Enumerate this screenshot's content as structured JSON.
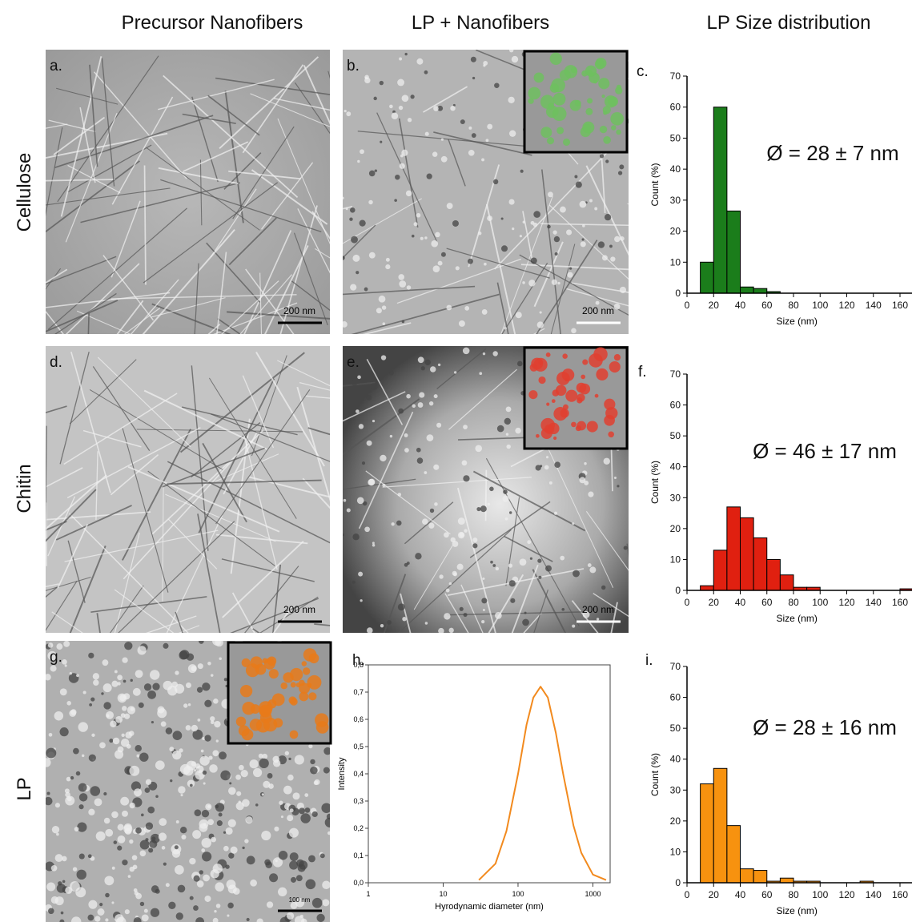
{
  "column_headers": [
    "Precursor Nanofibers",
    "LP + Nanofibers",
    "LP Size distribution"
  ],
  "row_labels": [
    "Cellulose",
    "Chitin",
    "LP"
  ],
  "micrographs": [
    {
      "label": "a.",
      "scale_bar": "200 nm"
    },
    {
      "label": "b.",
      "scale_bar": "200 nm"
    },
    {
      "label": "d.",
      "scale_bar": "200 nm"
    },
    {
      "label": "e.",
      "scale_bar": "200 nm"
    },
    {
      "label": "g.",
      "scale_bar": "100 nm"
    }
  ],
  "chart_data": [
    {
      "type": "histogram",
      "panel": "c.",
      "annotation": "Ø = 28 ± 7 nm",
      "x_label": "Size (nm)",
      "y_label": "Count (%)",
      "bins": [
        10,
        20,
        30,
        40,
        50,
        60,
        70
      ],
      "values": [
        10,
        60,
        26.5,
        2,
        1.5,
        0.5
      ],
      "color": "#1b7d1b",
      "xlim": [
        0,
        165
      ],
      "ylim": [
        0,
        70
      ],
      "xticks": [
        0,
        20,
        40,
        60,
        80,
        100,
        120,
        140,
        160
      ],
      "yticks": [
        0,
        10,
        20,
        30,
        40,
        50,
        60,
        70
      ]
    },
    {
      "type": "histogram",
      "panel": "f.",
      "annotation": "Ø = 46 ± 17 nm",
      "x_label": "Size (nm)",
      "y_label": "Count (%)",
      "bins": [
        10,
        20,
        30,
        40,
        50,
        60,
        70,
        80,
        90,
        100,
        110,
        120,
        130,
        140,
        150,
        160,
        170
      ],
      "values": [
        1.5,
        13,
        27,
        23.5,
        17,
        10,
        5,
        1,
        1,
        0,
        0,
        0,
        0,
        0,
        0,
        0.5
      ],
      "color": "#e02010",
      "xlim": [
        0,
        165
      ],
      "ylim": [
        0,
        70
      ],
      "xticks": [
        0,
        20,
        40,
        60,
        80,
        100,
        120,
        140,
        160
      ],
      "yticks": [
        0,
        10,
        20,
        30,
        40,
        50,
        60,
        70
      ]
    },
    {
      "type": "histogram",
      "panel": "i.",
      "annotation": "Ø = 28 ± 16 nm",
      "x_label": "Size (nm)",
      "y_label": "Count (%)",
      "bins": [
        10,
        20,
        30,
        40,
        50,
        60,
        70,
        80,
        90,
        100,
        110,
        120,
        130,
        140
      ],
      "values": [
        32,
        37,
        18.5,
        4.5,
        4,
        0.5,
        1.5,
        0.5,
        0.5,
        0,
        0,
        0,
        0.5
      ],
      "color": "#f7920f",
      "xlim": [
        0,
        165
      ],
      "ylim": [
        0,
        70
      ],
      "xticks": [
        0,
        20,
        40,
        60,
        80,
        100,
        120,
        140,
        160
      ],
      "yticks": [
        0,
        10,
        20,
        30,
        40,
        50,
        60,
        70
      ]
    },
    {
      "type": "line",
      "panel": "h.",
      "x_label": "Hyrodynamic diameter (nm)",
      "y_label": "Intensity",
      "x": [
        30,
        50,
        70,
        100,
        130,
        160,
        200,
        250,
        320,
        400,
        550,
        700,
        1000,
        1500
      ],
      "values": [
        0.01,
        0.07,
        0.19,
        0.4,
        0.58,
        0.68,
        0.72,
        0.68,
        0.55,
        0.4,
        0.21,
        0.11,
        0.03,
        0.01
      ],
      "color": "#f28a1e",
      "xscale": "log",
      "xlim": [
        1,
        1700
      ],
      "ylim": [
        0,
        0.8
      ],
      "xticks": [
        1,
        10,
        100,
        1000
      ],
      "yticks": [
        {
          "value": 0,
          "label": "0,0"
        },
        {
          "value": 0.1,
          "label": "0,1"
        },
        {
          "value": 0.2,
          "label": "0,2"
        },
        {
          "value": 0.3,
          "label": "0,3"
        },
        {
          "value": 0.4,
          "label": "0,4"
        },
        {
          "value": 0.5,
          "label": "0,5"
        },
        {
          "value": 0.6,
          "label": "0,6"
        },
        {
          "value": 0.7,
          "label": "0,7"
        },
        {
          "value": 0.8,
          "label": "0,8"
        }
      ]
    }
  ]
}
